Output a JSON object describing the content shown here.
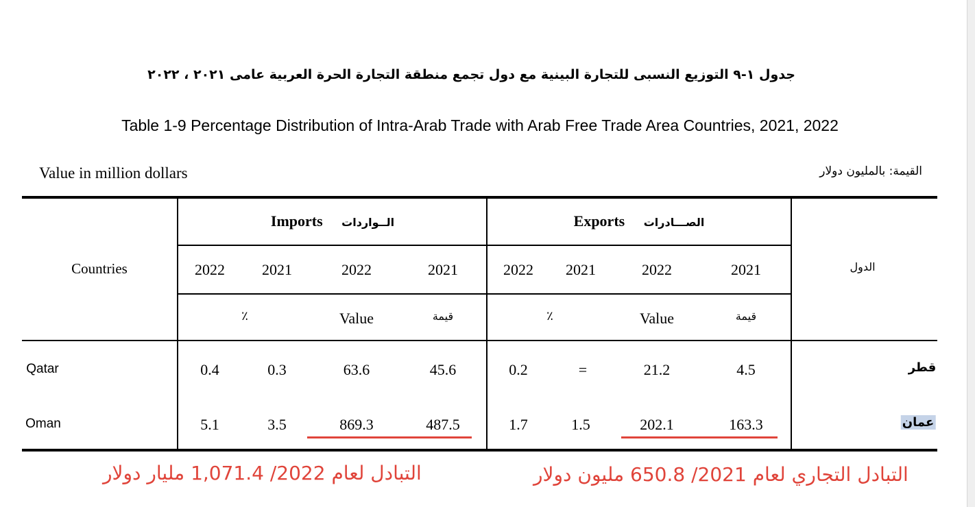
{
  "title_ar": "جدول ١-٩ التوزيع النسبى للتجارة البينية مع دول تجمع منطقة التجارة الحرة العربية عامى ٢٠٢١ ، ٢٠٢٢",
  "title_en": "Table 1-9 Percentage Distribution of Intra-Arab Trade with Arab Free Trade Area Countries, 2021, 2022",
  "unit_en": "Value in million dollars",
  "unit_ar": "القيمة: بالمليون دولار",
  "header": {
    "countries_en": "Countries",
    "countries_ar": "الدول",
    "imports_en": "Imports",
    "imports_ar": "الــواردات",
    "exports_en": "Exports",
    "exports_ar": "الصـــادرات",
    "years": [
      "2022",
      "2021",
      "2022",
      "2021"
    ],
    "percent_label": "٪",
    "value_label": "Value",
    "value_label_ar": "قيمة"
  },
  "rows": [
    {
      "name_en": "Qatar",
      "name_ar": "قطر",
      "imports": {
        "pct_2022": "0.4",
        "pct_2021": "0.3",
        "val_2022": "63.6",
        "val_2021": "45.6"
      },
      "exports": {
        "pct_2022": "0.2",
        "pct_2021": "=",
        "val_2022": "21.2",
        "val_2021": "4.5"
      }
    },
    {
      "name_en": "Oman",
      "name_ar": "عمان",
      "imports": {
        "pct_2022": "5.1",
        "pct_2021": "3.5",
        "val_2022": "869.3",
        "val_2021": "487.5"
      },
      "exports": {
        "pct_2022": "1.7",
        "pct_2021": "1.5",
        "val_2022": "202.1",
        "val_2021": "163.3"
      }
    }
  ],
  "annotations": {
    "note_2022": "التبادل لعام 2022/      1,071.4 مليار دولار",
    "note_2021": "التبادل التجاري لعام 2021/  650.8 مليون دولار",
    "color": "#e0443a"
  }
}
